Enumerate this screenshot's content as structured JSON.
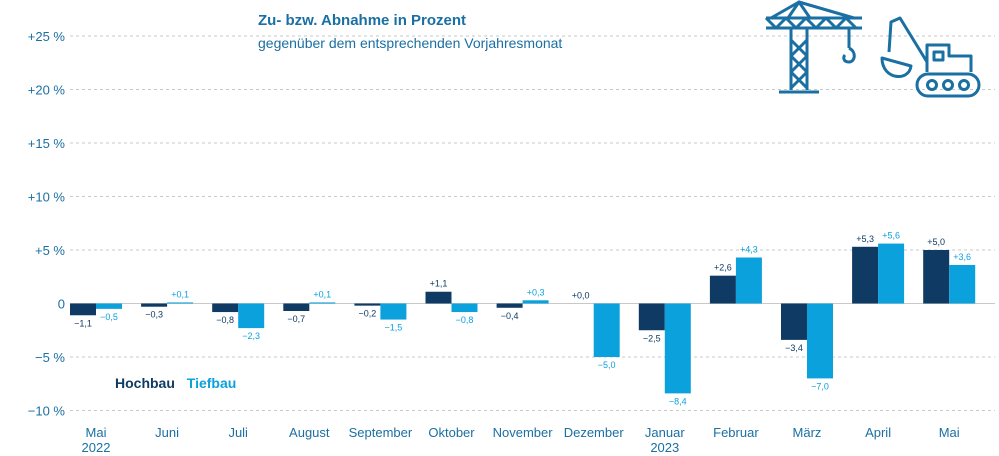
{
  "title": "Zu- bzw. Abnahme in Prozent",
  "subtitle": "gegenüber dem entsprechenden Vorjahresmonat",
  "legend": {
    "hochbau": "Hochbau",
    "tiefbau": "Tiefbau"
  },
  "icons": [
    "crane-icon",
    "excavator-icon"
  ],
  "colors": {
    "hochbau": "#0e3a63",
    "tiefbau": "#0aa1dd",
    "grid": "#c9c9c9",
    "text": "#1a6fa3"
  },
  "chart_data": {
    "type": "bar",
    "categories": [
      "Mai\n2022",
      "Juni",
      "Juli",
      "August",
      "September",
      "Oktober",
      "November",
      "Dezember",
      "Januar\n2023",
      "Februar",
      "März",
      "April",
      "Mai"
    ],
    "series": [
      {
        "name": "Hochbau",
        "values": [
          -1.1,
          -0.3,
          -0.8,
          -0.7,
          -0.2,
          1.1,
          -0.4,
          0.0,
          -2.5,
          2.6,
          -3.4,
          5.3,
          5.0
        ],
        "labels": [
          "−1,1",
          "−0,3",
          "−0,8",
          "−0,7",
          "−0,2",
          "+1,1",
          "−0,4",
          "+0,0",
          "−2,5",
          "+2,6",
          "−3,4",
          "+5,3",
          "+5,0"
        ]
      },
      {
        "name": "Tiefbau",
        "values": [
          -0.5,
          0.1,
          -2.3,
          0.1,
          -1.5,
          -0.8,
          0.3,
          -5.0,
          -8.4,
          4.3,
          -7.0,
          5.6,
          3.6
        ],
        "labels": [
          "−0,5",
          "+0,1",
          "−2,3",
          "+0,1",
          "−1,5",
          "−0,8",
          "+0,3",
          "−5,0",
          "−8,4",
          "+4,3",
          "−7,0",
          "+5,6",
          "+3,6"
        ]
      }
    ],
    "yticks": [
      -10,
      -5,
      0,
      5,
      10,
      15,
      20,
      25
    ],
    "ytick_labels": [
      "−10 %",
      "−5 %",
      "0",
      "+5 %",
      "+10 %",
      "+15 %",
      "+20 %",
      "+25 %"
    ],
    "ylim": [
      -10,
      25
    ],
    "grid": true,
    "legend_position": "bottom-left"
  }
}
